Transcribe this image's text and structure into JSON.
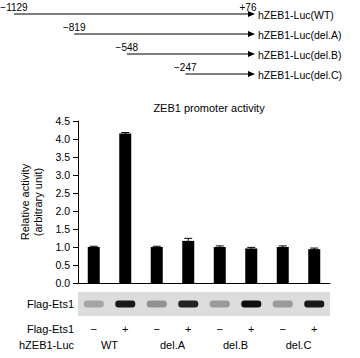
{
  "construct_diagram": {
    "constructs": [
      {
        "name": "hZEB1-Luc(WT)",
        "start": -1129,
        "start_label": "−1129",
        "end": 76,
        "end_label": "+76"
      },
      {
        "name": "hZEB1-Luc(del.A)",
        "start": -819,
        "start_label": "−819",
        "end": 76
      },
      {
        "name": "hZEB1-Luc(del.B)",
        "start": -548,
        "start_label": "−548",
        "end": 76
      },
      {
        "name": "hZEB1-Luc(del.C)",
        "start": -247,
        "start_label": "−247",
        "end": 76
      }
    ]
  },
  "chart_data": {
    "type": "bar",
    "title": "ZEB1 promoter activity",
    "ylabel": "Relative activity\n(arbitrary unit)",
    "categories": [
      "−",
      "+",
      "−",
      "+",
      "−",
      "+",
      "−",
      "+"
    ],
    "values": [
      1.0,
      4.15,
      1.0,
      1.17,
      1.0,
      0.96,
      1.0,
      0.94
    ],
    "errors": [
      0.02,
      0.03,
      0.02,
      0.07,
      0.03,
      0.03,
      0.03,
      0.03
    ],
    "color": "#000000",
    "ylim": [
      0,
      4.5
    ],
    "yticks": [
      {
        "value": 0,
        "label": "0.0"
      },
      {
        "value": 0.5,
        "label": "0.5"
      },
      {
        "value": 1,
        "label": "1.0"
      },
      {
        "value": 1.5,
        "label": "1.5"
      },
      {
        "value": 2,
        "label": "2.0"
      },
      {
        "value": 2.5,
        "label": "2.5"
      },
      {
        "value": 3,
        "label": "3.0"
      },
      {
        "value": 3.5,
        "label": "3.5"
      },
      {
        "value": 4,
        "label": "4.0"
      },
      {
        "value": 4.5,
        "label": "4.5"
      }
    ],
    "grid": false,
    "category_row_label": "Flag-Ets1",
    "group_row_label": "hZEB1-Luc",
    "groups": [
      "WT",
      "del.A",
      "del.B",
      "del.C"
    ],
    "blot": {
      "label": "Flag-Ets1",
      "band_intensities": [
        0.25,
        0.95,
        0.35,
        0.9,
        0.3,
        1.0,
        0.3,
        0.95
      ]
    }
  }
}
